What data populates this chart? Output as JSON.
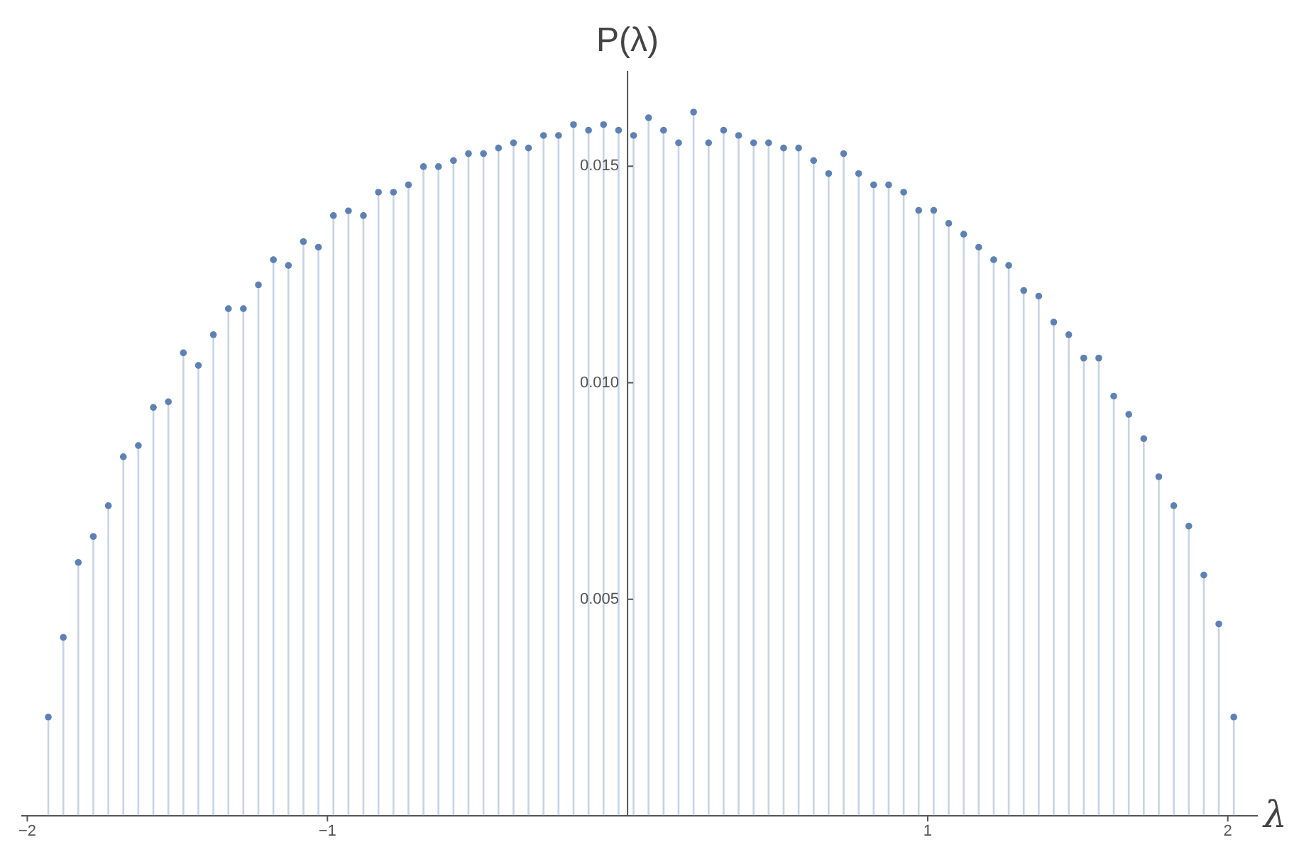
{
  "chart_data": {
    "type": "lollipop",
    "xlabel": "λ",
    "ylabel": "P(λ)",
    "x": [
      -1.93,
      -1.88,
      -1.83,
      -1.78,
      -1.73,
      -1.68,
      -1.63,
      -1.58,
      -1.53,
      -1.48,
      -1.43,
      -1.38,
      -1.33,
      -1.28,
      -1.23,
      -1.18,
      -1.13,
      -1.08,
      -1.03,
      -0.98,
      -0.93,
      -0.88,
      -0.83,
      -0.78,
      -0.73,
      -0.68,
      -0.63,
      -0.58,
      -0.53,
      -0.48,
      -0.43,
      -0.38,
      -0.33,
      -0.28,
      -0.23,
      -0.18,
      -0.13,
      -0.08,
      -0.03,
      0.02,
      0.07,
      0.12,
      0.17,
      0.22,
      0.27,
      0.32,
      0.37,
      0.42,
      0.47,
      0.52,
      0.57,
      0.62,
      0.67,
      0.72,
      0.77,
      0.82,
      0.87,
      0.92,
      0.97,
      1.02,
      1.07,
      1.12,
      1.17,
      1.22,
      1.27,
      1.32,
      1.37,
      1.42,
      1.47,
      1.52,
      1.57,
      1.62,
      1.67,
      1.72,
      1.77,
      1.82,
      1.87,
      1.92,
      1.97,
      2.02
    ],
    "series": [
      {
        "color": "#5e81b5",
        "values": [
          0.00228,
          0.00412,
          0.00585,
          0.00645,
          0.00716,
          0.00829,
          0.00855,
          0.00943,
          0.00956,
          0.01069,
          0.0104,
          0.01111,
          0.01171,
          0.01171,
          0.01226,
          0.01284,
          0.01271,
          0.01326,
          0.01313,
          0.01386,
          0.01397,
          0.01386,
          0.0144,
          0.0144,
          0.01457,
          0.01499,
          0.01499,
          0.01513,
          0.01529,
          0.01529,
          0.01542,
          0.01554,
          0.01542,
          0.01571,
          0.01571,
          0.01596,
          0.01583,
          0.01596,
          0.01583,
          0.01571,
          0.01612,
          0.01583,
          0.01554,
          0.01625,
          0.01554,
          0.01583,
          0.01571,
          0.01554,
          0.01554,
          0.01542,
          0.01542,
          0.01513,
          0.01483,
          0.01529,
          0.01483,
          0.01457,
          0.01457,
          0.0144,
          0.01398,
          0.01398,
          0.01368,
          0.01343,
          0.01313,
          0.01284,
          0.01271,
          0.01213,
          0.012,
          0.0114,
          0.01111,
          0.01057,
          0.01057,
          0.00969,
          0.00927,
          0.00871,
          0.00783,
          0.00716,
          0.00669,
          0.00556,
          0.00443,
          0.00228
        ]
      }
    ],
    "xlim": [
      -2.02,
      2.1
    ],
    "ylim": [
      0,
      0.0172
    ],
    "xticks": [
      {
        "value": -2,
        "label": "−2"
      },
      {
        "value": -1,
        "label": "−1"
      },
      1,
      2
    ],
    "yticks": [
      {
        "value": 0.005,
        "label": "0.005"
      },
      {
        "value": 0.01,
        "label": "0.010"
      },
      {
        "value": 0.015,
        "label": "0.015"
      }
    ],
    "grid": false,
    "legend": false,
    "marker": "circle"
  }
}
